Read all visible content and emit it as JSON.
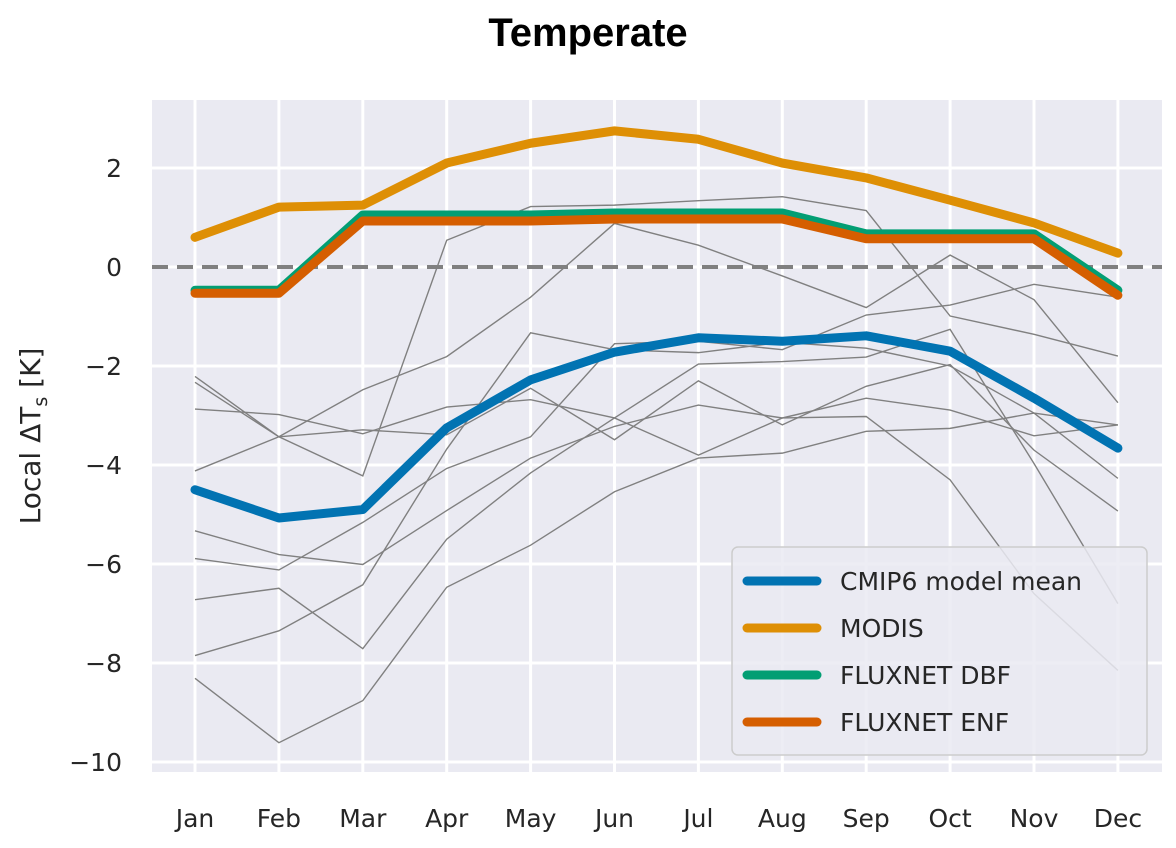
{
  "chart_data": {
    "type": "line",
    "title": "Temperate",
    "xlabel": "",
    "ylabel": "Local ΔT",
    "ylabel_subscript": "s",
    "ylabel_unit": "[K]",
    "categories": [
      "Jan",
      "Feb",
      "Mar",
      "Apr",
      "May",
      "Jun",
      "Jul",
      "Aug",
      "Sep",
      "Oct",
      "Nov",
      "Dec"
    ],
    "ylim": [
      -10.2,
      3.4
    ],
    "yticks": [
      2,
      0,
      -2,
      -4,
      -6,
      -8,
      -10
    ],
    "ytick_labels": [
      "2",
      "0",
      "−2",
      "−4",
      "−6",
      "−8",
      "−10"
    ],
    "grid": true,
    "legend_position": "lower-right",
    "reference_line": {
      "y": 0,
      "style": "dashed",
      "color": "#808080"
    },
    "series": [
      {
        "name": "CMIP6 model mean",
        "color": "#0173b2",
        "values": [
          -4.5,
          -5.07,
          -4.9,
          -3.25,
          -2.28,
          -1.72,
          -1.43,
          -1.5,
          -1.39,
          -1.7,
          -2.65,
          -3.66
        ]
      },
      {
        "name": "MODIS",
        "color": "#de8f05",
        "values": [
          0.6,
          1.21,
          1.25,
          2.1,
          2.5,
          2.75,
          2.58,
          2.1,
          1.8,
          1.35,
          0.89,
          0.28
        ]
      },
      {
        "name": "FLUXNET DBF",
        "color": "#029e73",
        "values": [
          -0.47,
          -0.47,
          1.05,
          1.05,
          1.05,
          1.09,
          1.09,
          1.09,
          0.67,
          0.67,
          0.67,
          -0.47
        ]
      },
      {
        "name": "FLUXNET ENF",
        "color": "#d55e00",
        "values": [
          -0.53,
          -0.53,
          0.93,
          0.93,
          0.93,
          0.97,
          0.97,
          0.97,
          0.57,
          0.57,
          0.57,
          -0.57
        ]
      }
    ],
    "model_lines": {
      "color": "#808080",
      "values": [
        [
          -2.21,
          -3.43,
          -4.22,
          0.54,
          1.22,
          1.25,
          1.34,
          1.42,
          1.14,
          -0.99,
          -1.36,
          -1.8
        ],
        [
          -2.33,
          -3.43,
          -3.29,
          -3.39,
          -2.45,
          -3.49,
          -2.3,
          -3.19,
          -2.41,
          -1.97,
          -3.7,
          -4.93
        ],
        [
          -2.87,
          -2.98,
          -3.37,
          -2.83,
          -2.68,
          -3.05,
          -3.8,
          -3.05,
          -3.02,
          -4.3,
          -6.6,
          -8.15
        ],
        [
          -4.12,
          -3.43,
          -2.48,
          -1.81,
          -0.61,
          0.88,
          0.44,
          -0.18,
          -0.82,
          0.24,
          -0.66,
          -2.74
        ],
        [
          -5.33,
          -5.81,
          -6.01,
          -4.92,
          -3.86,
          -3.22,
          -2.79,
          -3.05,
          -2.65,
          -2.89,
          -3.41,
          -3.19
        ],
        [
          -5.89,
          -6.12,
          -5.16,
          -4.07,
          -3.43,
          -1.55,
          -1.5,
          -1.67,
          -0.97,
          -0.77,
          -0.35,
          -0.61
        ],
        [
          -6.72,
          -6.49,
          -7.71,
          -5.5,
          -4.16,
          -3.05,
          -1.96,
          -1.91,
          -1.82,
          -1.26,
          -3.97,
          -6.8
        ],
        [
          -7.85,
          -7.35,
          -6.42,
          -3.68,
          -1.33,
          -1.67,
          -1.73,
          -1.52,
          -1.64,
          -2.0,
          -2.95,
          -4.27
        ],
        [
          -8.31,
          -9.61,
          -8.76,
          -6.47,
          -5.62,
          -4.54,
          -3.86,
          -3.76,
          -3.32,
          -3.26,
          -2.95,
          -3.19
        ]
      ]
    }
  }
}
